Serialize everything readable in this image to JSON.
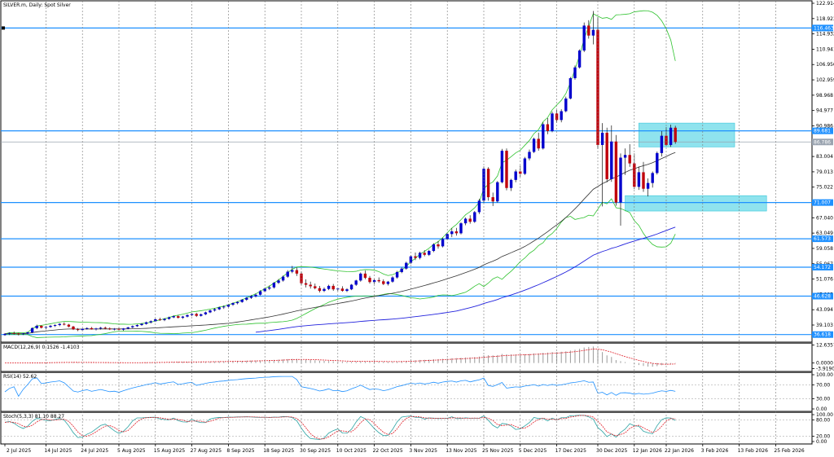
{
  "chart_data": {
    "type": "candlestick",
    "title": "SILVER.m, Daily:  Spot Silver",
    "x_labels": [
      "2 Jul 2025",
      "14 Jul 2025",
      "24 Jul 2025",
      "5 Aug 2025",
      "15 Aug 2025",
      "27 Aug 2025",
      "8 Sep 2025",
      "18 Sep 2025",
      "30 Sep 2025",
      "10 Oct 2025",
      "22 Oct 2025",
      "3 Nov 2025",
      "13 Nov 2025",
      "25 Nov 2025",
      "5 Dec 2025",
      "17 Dec 2025",
      "30 Dec 2025",
      "12 Jan 2026",
      "22 Jan 2026",
      "3 Feb 2026",
      "13 Feb 2026",
      "25 Feb 2026"
    ],
    "price_axis": {
      "ticks": [
        "122.914",
        "118.923",
        "114.932",
        "110.941",
        "106.950",
        "102.959",
        "98.968",
        "94.977",
        "90.986",
        "86.995",
        "83.004",
        "79.013",
        "75.022",
        "71.031",
        "67.040",
        "63.049",
        "59.058",
        "55.067",
        "51.076",
        "47.085",
        "43.094",
        "39.103"
      ],
      "range": [
        35.0,
        123.5
      ],
      "current_price": "86.786",
      "current_label": "86.786"
    },
    "horizontal_levels": [
      {
        "price": 116.463,
        "label": "116.463",
        "color": "#1e90ff"
      },
      {
        "price": 89.681,
        "label": "89.681",
        "color": "#1e90ff"
      },
      {
        "price": 71.007,
        "label": "71.007",
        "color": "#1e90ff"
      },
      {
        "price": 61.573,
        "label": "61.573",
        "color": "#1e90ff"
      },
      {
        "price": 54.172,
        "label": "54.172",
        "color": "#1e90ff"
      },
      {
        "price": 46.628,
        "label": "46.628",
        "color": "#1e90ff"
      },
      {
        "price": 36.618,
        "label": "36.618",
        "color": "#1e90ff"
      }
    ],
    "zones": [
      {
        "from_date_index": 139,
        "to_date_index": 160,
        "low": 85.5,
        "high": 91.7,
        "color": "#8fe3ee"
      },
      {
        "from_date_index": 136,
        "to_date_index": 167,
        "low": 68.8,
        "high": 72.8,
        "color": "#8fe3ee"
      }
    ],
    "candles_ohlc": [
      [
        36.5,
        37.0,
        36.3,
        36.8
      ],
      [
        36.8,
        37.2,
        36.5,
        37.0
      ],
      [
        37.0,
        37.4,
        36.6,
        36.9
      ],
      [
        36.9,
        37.1,
        36.4,
        36.7
      ],
      [
        36.7,
        37.0,
        36.5,
        36.9
      ],
      [
        36.9,
        37.3,
        36.7,
        37.2
      ],
      [
        37.2,
        38.5,
        37.0,
        38.3
      ],
      [
        38.3,
        39.2,
        38.0,
        38.9
      ],
      [
        38.9,
        39.0,
        38.2,
        38.4
      ],
      [
        38.4,
        38.8,
        38.0,
        38.6
      ],
      [
        38.6,
        39.1,
        38.4,
        38.9
      ],
      [
        38.9,
        39.3,
        38.6,
        39.1
      ],
      [
        39.1,
        39.6,
        38.8,
        39.4
      ],
      [
        39.4,
        39.8,
        39.0,
        39.2
      ],
      [
        39.2,
        39.4,
        38.5,
        38.7
      ],
      [
        38.7,
        38.9,
        37.8,
        38.0
      ],
      [
        38.0,
        38.3,
        37.5,
        37.8
      ],
      [
        37.8,
        38.2,
        37.6,
        38.1
      ],
      [
        38.1,
        38.5,
        37.9,
        38.3
      ],
      [
        38.3,
        38.6,
        37.9,
        38.0
      ],
      [
        38.0,
        38.4,
        37.7,
        38.2
      ],
      [
        38.2,
        38.6,
        37.9,
        38.4
      ],
      [
        38.4,
        38.7,
        38.0,
        38.2
      ],
      [
        38.2,
        38.5,
        37.8,
        38.0
      ],
      [
        38.0,
        38.3,
        37.7,
        38.1
      ],
      [
        38.1,
        38.4,
        37.8,
        37.9
      ],
      [
        37.9,
        38.3,
        37.6,
        38.2
      ],
      [
        38.2,
        38.6,
        38.0,
        38.5
      ],
      [
        38.5,
        39.0,
        38.3,
        38.8
      ],
      [
        38.8,
        39.3,
        38.6,
        39.1
      ],
      [
        39.1,
        39.6,
        38.9,
        39.4
      ],
      [
        39.4,
        40.0,
        39.2,
        39.8
      ],
      [
        39.8,
        40.3,
        39.5,
        40.1
      ],
      [
        40.1,
        40.8,
        39.9,
        40.6
      ],
      [
        40.6,
        41.0,
        40.2,
        40.4
      ],
      [
        40.4,
        40.9,
        40.1,
        40.7
      ],
      [
        40.7,
        41.3,
        40.5,
        41.1
      ],
      [
        41.1,
        41.6,
        40.9,
        41.4
      ],
      [
        41.4,
        41.7,
        40.8,
        41.0
      ],
      [
        41.0,
        41.5,
        40.7,
        41.3
      ],
      [
        41.3,
        41.9,
        41.1,
        41.7
      ],
      [
        41.7,
        42.2,
        41.4,
        42.0
      ],
      [
        42.0,
        42.3,
        41.2,
        41.5
      ],
      [
        41.5,
        42.1,
        41.3,
        41.9
      ],
      [
        41.9,
        42.6,
        41.7,
        42.4
      ],
      [
        42.4,
        43.1,
        42.2,
        42.9
      ],
      [
        42.9,
        43.5,
        42.6,
        43.2
      ],
      [
        43.2,
        43.9,
        43.0,
        43.7
      ],
      [
        43.7,
        44.2,
        43.3,
        43.9
      ],
      [
        43.9,
        44.6,
        43.7,
        44.4
      ],
      [
        44.4,
        45.0,
        44.1,
        44.8
      ],
      [
        44.8,
        45.3,
        44.5,
        45.1
      ],
      [
        45.1,
        45.9,
        44.9,
        45.7
      ],
      [
        45.7,
        46.4,
        45.4,
        46.2
      ],
      [
        46.2,
        46.9,
        45.9,
        46.6
      ],
      [
        46.6,
        47.3,
        46.3,
        47.0
      ],
      [
        47.0,
        48.2,
        46.8,
        47.9
      ],
      [
        47.9,
        48.9,
        47.6,
        48.6
      ],
      [
        48.6,
        49.4,
        48.2,
        48.9
      ],
      [
        48.9,
        50.3,
        48.6,
        50.1
      ],
      [
        50.1,
        51.1,
        49.8,
        50.7
      ],
      [
        50.7,
        52.0,
        50.4,
        51.7
      ],
      [
        51.7,
        53.4,
        51.4,
        53.0
      ],
      [
        53.0,
        54.5,
        52.6,
        53.4
      ],
      [
        53.4,
        54.1,
        51.9,
        52.5
      ],
      [
        52.5,
        53.0,
        49.5,
        50.0
      ],
      [
        50.0,
        51.0,
        48.9,
        49.6
      ],
      [
        49.6,
        50.4,
        48.6,
        49.2
      ],
      [
        49.2,
        49.9,
        48.4,
        48.7
      ],
      [
        48.7,
        49.3,
        47.6,
        48.0
      ],
      [
        48.0,
        48.9,
        47.7,
        48.5
      ],
      [
        48.5,
        49.6,
        48.2,
        49.3
      ],
      [
        49.3,
        49.8,
        48.0,
        48.4
      ],
      [
        48.4,
        48.9,
        47.9,
        48.6
      ],
      [
        48.6,
        49.2,
        47.8,
        48.0
      ],
      [
        48.0,
        48.7,
        47.7,
        48.4
      ],
      [
        48.4,
        49.8,
        48.2,
        49.6
      ],
      [
        49.6,
        50.9,
        49.3,
        50.7
      ],
      [
        50.7,
        52.8,
        50.4,
        52.5
      ],
      [
        52.5,
        53.3,
        51.0,
        51.4
      ],
      [
        51.4,
        51.9,
        49.9,
        50.3
      ],
      [
        50.3,
        51.1,
        49.8,
        50.8
      ],
      [
        50.8,
        51.5,
        50.1,
        50.5
      ],
      [
        50.5,
        51.0,
        49.5,
        49.8
      ],
      [
        49.8,
        50.6,
        49.4,
        50.4
      ],
      [
        50.4,
        51.8,
        50.1,
        51.5
      ],
      [
        51.5,
        53.2,
        51.2,
        52.9
      ],
      [
        52.9,
        54.1,
        52.6,
        53.8
      ],
      [
        53.8,
        55.6,
        53.5,
        55.3
      ],
      [
        55.3,
        57.3,
        55.0,
        57.0
      ],
      [
        57.0,
        58.0,
        56.0,
        56.6
      ],
      [
        56.6,
        58.2,
        56.2,
        57.9
      ],
      [
        57.9,
        58.6,
        57.0,
        57.4
      ],
      [
        57.4,
        58.7,
        57.1,
        58.4
      ],
      [
        58.4,
        60.4,
        58.1,
        60.1
      ],
      [
        60.1,
        61.0,
        59.0,
        59.6
      ],
      [
        59.6,
        61.8,
        59.3,
        61.5
      ],
      [
        61.5,
        63.1,
        61.2,
        62.8
      ],
      [
        62.8,
        64.3,
        62.0,
        63.5
      ],
      [
        63.5,
        64.4,
        62.4,
        63.0
      ],
      [
        63.0,
        65.9,
        62.7,
        65.6
      ],
      [
        65.6,
        67.1,
        65.1,
        66.8
      ],
      [
        66.8,
        67.7,
        65.5,
        66.0
      ],
      [
        66.0,
        68.8,
        65.7,
        68.5
      ],
      [
        68.5,
        72.0,
        68.0,
        71.5
      ],
      [
        71.5,
        80.4,
        71.0,
        79.8
      ],
      [
        79.8,
        80.2,
        71.5,
        72.4
      ],
      [
        72.4,
        73.6,
        70.1,
        71.3
      ],
      [
        71.3,
        76.6,
        71.0,
        76.3
      ],
      [
        76.3,
        85.0,
        76.0,
        84.5
      ],
      [
        84.5,
        85.1,
        74.2,
        74.8
      ],
      [
        74.8,
        77.2,
        74.0,
        76.9
      ],
      [
        76.9,
        79.6,
        76.3,
        79.1
      ],
      [
        79.1,
        80.6,
        77.7,
        78.5
      ],
      [
        78.5,
        82.9,
        78.2,
        82.5
      ],
      [
        82.5,
        84.8,
        82.0,
        84.2
      ],
      [
        84.2,
        87.9,
        83.9,
        87.6
      ],
      [
        87.6,
        89.2,
        84.5,
        85.1
      ],
      [
        85.1,
        91.9,
        84.8,
        91.4
      ],
      [
        91.4,
        93.0,
        88.8,
        89.6
      ],
      [
        89.6,
        94.7,
        89.3,
        94.2
      ],
      [
        94.2,
        95.1,
        91.8,
        92.5
      ],
      [
        92.5,
        95.3,
        91.9,
        94.8
      ],
      [
        94.8,
        98.6,
        94.5,
        98.1
      ],
      [
        98.1,
        103.7,
        97.9,
        103.4
      ],
      [
        103.4,
        106.7,
        103.0,
        106.2
      ],
      [
        106.2,
        110.9,
        105.9,
        110.6
      ],
      [
        110.6,
        117.9,
        110.2,
        117.1
      ],
      [
        117.1,
        118.5,
        113.7,
        114.5
      ],
      [
        114.5,
        120.9,
        112.2,
        116.0
      ],
      [
        116.0,
        119.3,
        85.0,
        86.0
      ],
      [
        86.0,
        91.7,
        70.0,
        89.2
      ],
      [
        89.2,
        90.5,
        76.3,
        77.1
      ],
      [
        77.1,
        91.1,
        76.4,
        86.9
      ],
      [
        86.9,
        88.6,
        70.2,
        71.0
      ],
      [
        71.0,
        83.8,
        65.0,
        82.7
      ],
      [
        82.7,
        85.1,
        78.2,
        83.4
      ],
      [
        83.4,
        86.2,
        80.3,
        81.2
      ],
      [
        81.2,
        83.8,
        74.5,
        75.1
      ],
      [
        75.1,
        80.4,
        74.3,
        78.9
      ],
      [
        78.9,
        81.6,
        73.8,
        74.6
      ],
      [
        74.6,
        77.3,
        72.6,
        76.1
      ],
      [
        76.1,
        79.1,
        74.9,
        78.7
      ],
      [
        78.7,
        84.3,
        78.3,
        83.9
      ],
      [
        83.9,
        89.6,
        83.0,
        88.4
      ],
      [
        88.4,
        90.6,
        85.7,
        86.0
      ],
      [
        86.0,
        91.3,
        85.5,
        90.5
      ],
      [
        90.5,
        91.0,
        86.3,
        86.8
      ]
    ],
    "indicators": [
      {
        "name": "MACD(12,26,9) 0.1526 -1.4103",
        "ticks": [
          "12.6357",
          "0.0000",
          "-3.9190"
        ],
        "range": [
          -4.8,
          13.0
        ]
      },
      {
        "name": "RSI(14) 52.62",
        "ticks": [
          "100.00",
          "70.00",
          "30.00",
          "0.00"
        ],
        "range": [
          0,
          100
        ]
      },
      {
        "name": "Stoch(5,3,3) 81.10 88.27",
        "ticks": [
          "100.00",
          "80.00",
          "20.00",
          "0.00"
        ],
        "range": [
          0,
          100
        ]
      }
    ],
    "colors": {
      "bull": "#0000cd",
      "bear": "#c0000b",
      "ma_slow": "#2222dd",
      "ma_fast": "#333333",
      "bollinger": "#2ec22e",
      "level_line": "#1e90ff",
      "signal": "#e0202a",
      "rsi_line": "#1e90ff",
      "stoch_main": "#2aa3a3",
      "stoch_signal": "#e0202a"
    }
  }
}
